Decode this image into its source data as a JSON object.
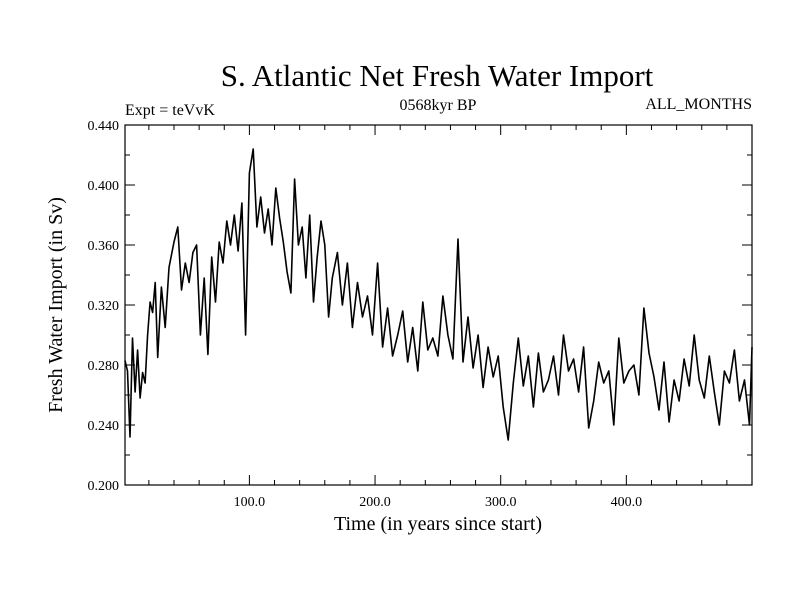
{
  "chart_data": {
    "type": "line",
    "title": "S. Atlantic Net Fresh Water Import",
    "subtitle_left": "Expt = teVvK",
    "subtitle_center": "0568kyr BP",
    "subtitle_right": "ALL_MONTHS",
    "xlabel": "Time (in years since start)",
    "ylabel": "Fresh Water Import (in Sv)",
    "xlim": [
      1,
      500
    ],
    "ylim": [
      0.2,
      0.44
    ],
    "x_ticks": [
      100,
      200,
      300,
      400
    ],
    "x_tick_labels": [
      "100.0",
      "200.0",
      "300.0",
      "400.0"
    ],
    "y_ticks": [
      0.2,
      0.24,
      0.28,
      0.32,
      0.36,
      0.4,
      0.44
    ],
    "y_tick_labels": [
      "0.200",
      "0.240",
      "0.280",
      "0.320",
      "0.360",
      "0.400",
      "0.440"
    ],
    "grid": false,
    "series": [
      {
        "color": "#000000",
        "x": [
          1,
          3,
          5,
          7,
          9,
          11,
          13,
          15,
          17,
          19,
          21,
          23,
          25,
          27,
          30,
          33,
          36,
          40,
          43,
          46,
          49,
          52,
          55,
          58,
          61,
          64,
          67,
          70,
          73,
          76,
          79,
          82,
          85,
          88,
          91,
          94,
          97,
          100,
          103,
          106,
          109,
          112,
          115,
          118,
          121,
          124,
          127,
          130,
          133,
          136,
          139,
          142,
          145,
          148,
          151,
          154,
          157,
          160,
          163,
          166,
          170,
          174,
          178,
          182,
          186,
          190,
          194,
          198,
          202,
          206,
          210,
          214,
          218,
          222,
          226,
          230,
          234,
          238,
          242,
          246,
          250,
          254,
          258,
          262,
          266,
          270,
          274,
          278,
          282,
          286,
          290,
          294,
          298,
          302,
          306,
          310,
          314,
          318,
          322,
          326,
          330,
          334,
          338,
          342,
          346,
          350,
          354,
          358,
          362,
          366,
          370,
          374,
          378,
          382,
          386,
          390,
          394,
          398,
          402,
          406,
          410,
          414,
          418,
          422,
          426,
          430,
          434,
          438,
          442,
          446,
          450,
          454,
          458,
          462,
          466,
          470,
          474,
          478,
          482,
          486,
          490,
          494,
          498,
          500
        ],
        "y": [
          0.283,
          0.276,
          0.232,
          0.298,
          0.262,
          0.29,
          0.258,
          0.275,
          0.268,
          0.3,
          0.322,
          0.315,
          0.335,
          0.285,
          0.332,
          0.305,
          0.345,
          0.362,
          0.372,
          0.33,
          0.348,
          0.335,
          0.355,
          0.36,
          0.3,
          0.338,
          0.287,
          0.352,
          0.322,
          0.362,
          0.348,
          0.376,
          0.36,
          0.38,
          0.356,
          0.388,
          0.3,
          0.408,
          0.424,
          0.372,
          0.392,
          0.368,
          0.384,
          0.36,
          0.398,
          0.378,
          0.362,
          0.342,
          0.328,
          0.404,
          0.36,
          0.372,
          0.338,
          0.38,
          0.322,
          0.352,
          0.376,
          0.36,
          0.312,
          0.338,
          0.355,
          0.32,
          0.348,
          0.305,
          0.335,
          0.312,
          0.326,
          0.3,
          0.348,
          0.292,
          0.318,
          0.286,
          0.3,
          0.316,
          0.282,
          0.305,
          0.276,
          0.322,
          0.29,
          0.298,
          0.286,
          0.326,
          0.3,
          0.284,
          0.364,
          0.282,
          0.312,
          0.278,
          0.3,
          0.265,
          0.292,
          0.272,
          0.286,
          0.252,
          0.23,
          0.268,
          0.298,
          0.266,
          0.286,
          0.252,
          0.288,
          0.262,
          0.27,
          0.286,
          0.26,
          0.3,
          0.276,
          0.284,
          0.262,
          0.292,
          0.238,
          0.256,
          0.282,
          0.268,
          0.276,
          0.24,
          0.298,
          0.268,
          0.276,
          0.28,
          0.26,
          0.318,
          0.288,
          0.272,
          0.25,
          0.282,
          0.242,
          0.27,
          0.256,
          0.284,
          0.266,
          0.3,
          0.27,
          0.258,
          0.286,
          0.262,
          0.24,
          0.276,
          0.268,
          0.29,
          0.256,
          0.27,
          0.24,
          0.292
        ]
      }
    ]
  }
}
